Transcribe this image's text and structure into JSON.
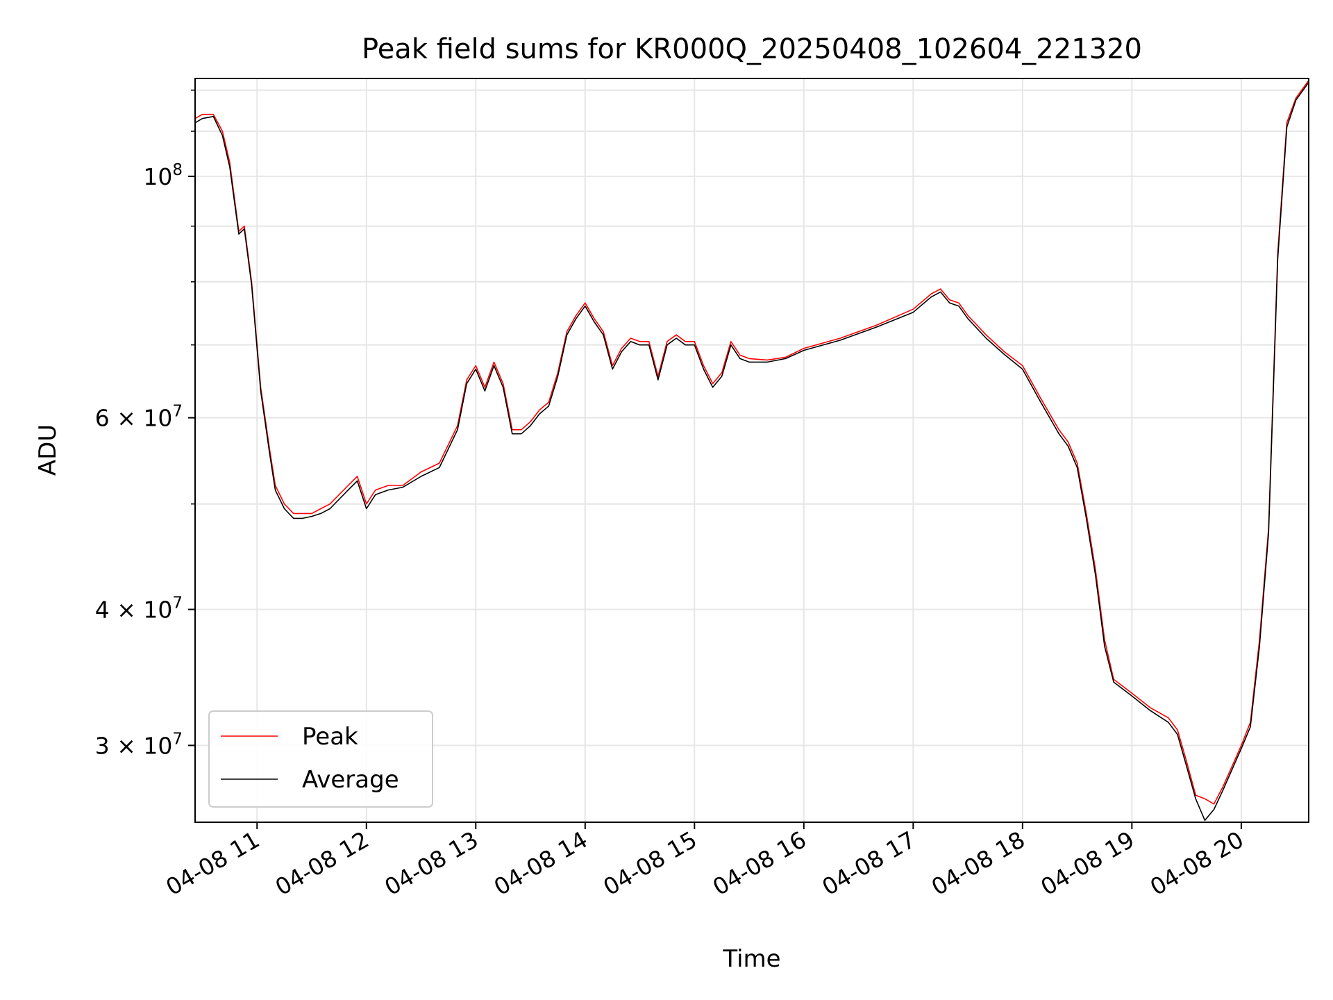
{
  "chart_data": {
    "type": "line",
    "title": "Peak field sums for KR000Q_20250408_102604_221320",
    "xlabel": "Time",
    "ylabel": "ADU",
    "y_scale": "log",
    "ylim": [
      25500000,
      123000000
    ],
    "xlim": [
      "2025-04-08 10:26",
      "2025-04-08 20:37"
    ],
    "x_ticks": [
      "04-08 11",
      "04-08 12",
      "04-08 13",
      "04-08 14",
      "04-08 15",
      "04-08 16",
      "04-08 17",
      "04-08 18",
      "04-08 19",
      "04-08 20"
    ],
    "y_ticks": [
      {
        "value": 30000000,
        "label_base": "3",
        "label_exp": "7"
      },
      {
        "value": 40000000,
        "label_base": "4",
        "label_exp": "7"
      },
      {
        "value": 60000000,
        "label_base": "6",
        "label_exp": "7"
      },
      {
        "value": 100000000,
        "label_base": "",
        "label_exp": "8"
      }
    ],
    "grid": true,
    "legend_position": "lower-left",
    "series": [
      {
        "name": "Peak",
        "color": "#ff0000",
        "x": [
          "10:26",
          "10:30",
          "10:36",
          "10:41",
          "10:45",
          "10:50",
          "10:53",
          "10:57",
          "11:02",
          "11:07",
          "11:10",
          "11:15",
          "11:20",
          "11:25",
          "11:30",
          "11:35",
          "11:40",
          "11:50",
          "11:55",
          "12:00",
          "12:05",
          "12:12",
          "12:20",
          "12:30",
          "12:40",
          "12:50",
          "12:55",
          "13:00",
          "13:05",
          "13:10",
          "13:15",
          "13:20",
          "13:25",
          "13:30",
          "13:35",
          "13:40",
          "13:45",
          "13:50",
          "13:55",
          "14:00",
          "14:05",
          "14:10",
          "14:15",
          "14:20",
          "14:25",
          "14:30",
          "14:35",
          "14:40",
          "14:45",
          "14:50",
          "14:55",
          "15:00",
          "15:05",
          "15:10",
          "15:15",
          "15:20",
          "15:25",
          "15:30",
          "15:40",
          "15:50",
          "16:00",
          "16:20",
          "16:40",
          "17:00",
          "17:10",
          "17:15",
          "17:20",
          "17:25",
          "17:30",
          "17:40",
          "17:50",
          "18:00",
          "18:10",
          "18:20",
          "18:25",
          "18:30",
          "18:35",
          "18:40",
          "18:45",
          "18:50",
          "19:00",
          "19:10",
          "19:20",
          "19:25",
          "19:30",
          "19:35",
          "19:40",
          "19:45",
          "19:50",
          "20:00",
          "20:05",
          "20:10",
          "20:15",
          "20:20",
          "20:25",
          "20:30",
          "20:37"
        ],
        "values": [
          113000000,
          114000000,
          114000000,
          110000000,
          103000000,
          89000000,
          90000000,
          80000000,
          64000000,
          56000000,
          52000000,
          50000000,
          49000000,
          49000000,
          49000000,
          49500000,
          50000000,
          52000000,
          53000000,
          50000000,
          51500000,
          52000000,
          52000000,
          53500000,
          54500000,
          59000000,
          65000000,
          67000000,
          64000000,
          67500000,
          64500000,
          58500000,
          58500000,
          59500000,
          61000000,
          62000000,
          66000000,
          72000000,
          74500000,
          76500000,
          74000000,
          72000000,
          67000000,
          69500000,
          71000000,
          70500000,
          70500000,
          65500000,
          70500000,
          71500000,
          70500000,
          70500000,
          67000000,
          64500000,
          66000000,
          70500000,
          68500000,
          68000000,
          67800000,
          68200000,
          69500000,
          71000000,
          73000000,
          75500000,
          78000000,
          78800000,
          77000000,
          76500000,
          74500000,
          71500000,
          69000000,
          67000000,
          62500000,
          58500000,
          57000000,
          54500000,
          49000000,
          43500000,
          37500000,
          34500000,
          33500000,
          32500000,
          31800000,
          31000000,
          29000000,
          27000000,
          26800000,
          26500000,
          27500000,
          30000000,
          31500000,
          37500000,
          47500000,
          85000000,
          112000000,
          118000000,
          122500000
        ]
      },
      {
        "name": "Average",
        "color": "#000000",
        "x": [
          "10:26",
          "10:30",
          "10:36",
          "10:41",
          "10:45",
          "10:50",
          "10:53",
          "10:57",
          "11:02",
          "11:07",
          "11:10",
          "11:15",
          "11:20",
          "11:25",
          "11:30",
          "11:35",
          "11:40",
          "11:50",
          "11:55",
          "12:00",
          "12:05",
          "12:12",
          "12:20",
          "12:30",
          "12:40",
          "12:50",
          "12:55",
          "13:00",
          "13:05",
          "13:10",
          "13:15",
          "13:20",
          "13:25",
          "13:30",
          "13:35",
          "13:40",
          "13:45",
          "13:50",
          "13:55",
          "14:00",
          "14:05",
          "14:10",
          "14:15",
          "14:20",
          "14:25",
          "14:30",
          "14:35",
          "14:40",
          "14:45",
          "14:50",
          "14:55",
          "15:00",
          "15:05",
          "15:10",
          "15:15",
          "15:20",
          "15:25",
          "15:30",
          "15:40",
          "15:50",
          "16:00",
          "16:20",
          "16:40",
          "17:00",
          "17:10",
          "17:15",
          "17:20",
          "17:25",
          "17:30",
          "17:40",
          "17:50",
          "18:00",
          "18:10",
          "18:20",
          "18:25",
          "18:30",
          "18:35",
          "18:40",
          "18:45",
          "18:50",
          "19:00",
          "19:10",
          "19:20",
          "19:25",
          "19:30",
          "19:35",
          "19:40",
          "19:45",
          "19:50",
          "20:00",
          "20:05",
          "20:10",
          "20:15",
          "20:20",
          "20:25",
          "20:30",
          "20:37"
        ],
        "values": [
          112000000,
          113000000,
          113500000,
          109000000,
          102000000,
          88500000,
          89500000,
          79500000,
          63500000,
          55500000,
          51500000,
          49500000,
          48500000,
          48500000,
          48700000,
          49000000,
          49500000,
          51500000,
          52500000,
          49500000,
          51000000,
          51500000,
          51800000,
          53000000,
          54000000,
          58500000,
          64500000,
          66500000,
          63500000,
          67000000,
          64000000,
          58000000,
          58000000,
          59000000,
          60500000,
          61500000,
          65500000,
          71500000,
          74000000,
          76000000,
          73500000,
          71500000,
          66500000,
          69000000,
          70500000,
          70000000,
          70000000,
          65000000,
          70000000,
          71000000,
          70000000,
          70000000,
          66500000,
          64000000,
          65500000,
          70000000,
          68000000,
          67500000,
          67500000,
          68000000,
          69200000,
          70700000,
          72700000,
          75000000,
          77500000,
          78300000,
          76500000,
          76000000,
          74000000,
          71000000,
          68600000,
          66500000,
          62000000,
          58000000,
          56500000,
          54000000,
          48500000,
          43000000,
          37000000,
          34300000,
          33300000,
          32300000,
          31500000,
          30700000,
          28700000,
          26800000,
          25600000,
          26200000,
          27300000,
          29800000,
          31200000,
          37000000,
          47000000,
          84000000,
          111000000,
          117500000,
          122000000
        ]
      }
    ]
  }
}
